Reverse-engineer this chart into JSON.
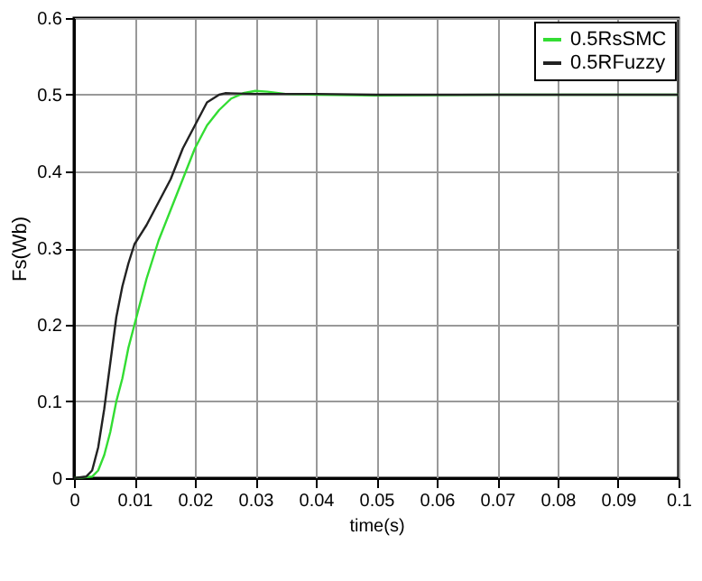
{
  "chart_data": {
    "type": "line",
    "xlabel": "time(s)",
    "ylabel": "Fs(Wb)",
    "xlim": [
      0,
      0.1
    ],
    "xticks": [
      0,
      0.01,
      0.02,
      0.03,
      0.04,
      0.05,
      0.06,
      0.07,
      0.08,
      0.09,
      0.1
    ],
    "ylim": [
      0,
      0.6
    ],
    "yticks": [
      0,
      0.1,
      0.2,
      0.3,
      0.4,
      0.5,
      0.6
    ],
    "grid": true,
    "legend": "top right",
    "line_style": "solid",
    "marker": "none",
    "series": [
      {
        "name": "0.5RsSMC",
        "color": "#33dd33",
        "x": [
          0,
          0.003,
          0.004,
          0.005,
          0.006,
          0.007,
          0.008,
          0.009,
          0.01,
          0.012,
          0.014,
          0.016,
          0.018,
          0.02,
          0.022,
          0.024,
          0.026,
          0.028,
          0.03,
          0.032,
          0.035,
          0.04,
          0.05,
          0.07,
          0.1
        ],
        "values": [
          0,
          0.002,
          0.01,
          0.03,
          0.06,
          0.1,
          0.13,
          0.17,
          0.2,
          0.26,
          0.31,
          0.35,
          0.39,
          0.43,
          0.46,
          0.48,
          0.495,
          0.502,
          0.505,
          0.504,
          0.501,
          0.5,
          0.499,
          0.5,
          0.5
        ]
      },
      {
        "name": "0.5RFuzzy",
        "color": "#222222",
        "x": [
          0,
          0.002,
          0.003,
          0.004,
          0.005,
          0.006,
          0.007,
          0.008,
          0.009,
          0.01,
          0.012,
          0.014,
          0.016,
          0.018,
          0.02,
          0.022,
          0.024,
          0.025,
          0.03,
          0.04,
          0.05,
          0.1
        ],
        "values": [
          0,
          0.002,
          0.01,
          0.04,
          0.09,
          0.15,
          0.21,
          0.25,
          0.28,
          0.305,
          0.33,
          0.36,
          0.39,
          0.43,
          0.46,
          0.49,
          0.5,
          0.502,
          0.501,
          0.501,
          0.5,
          0.5
        ]
      }
    ]
  }
}
